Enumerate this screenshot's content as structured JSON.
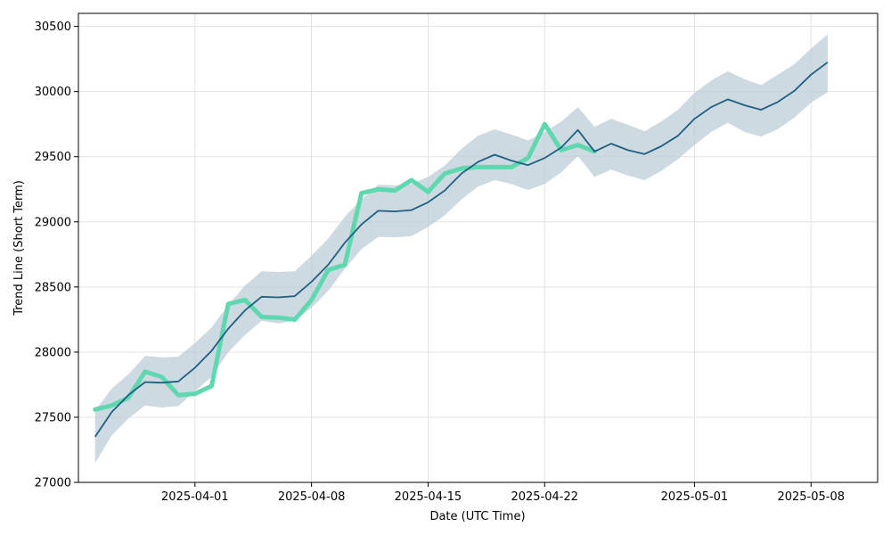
{
  "chart_data": {
    "type": "line",
    "title": "",
    "xlabel": "Date (UTC Time)",
    "ylabel": "Trend Line (Short Term)",
    "xlim": [
      "2025-03-25",
      "2025-05-12"
    ],
    "ylim": [
      27000,
      30600
    ],
    "grid": true,
    "legend": "none",
    "x_ticks": [
      "2025-04-01",
      "2025-04-08",
      "2025-04-15",
      "2025-04-22",
      "2025-05-01",
      "2025-05-08"
    ],
    "y_ticks": [
      27000,
      27500,
      28000,
      28500,
      29000,
      29500,
      30000,
      30500
    ],
    "colors": {
      "actual": "#5fd8b0",
      "trend": "#1f5f80",
      "band": "#b8cad6"
    },
    "series": [
      {
        "key": "actual",
        "x": [
          "2025-03-26",
          "2025-03-27",
          "2025-03-28",
          "2025-03-29",
          "2025-03-30",
          "2025-03-31",
          "2025-04-01",
          "2025-04-02",
          "2025-04-03",
          "2025-04-04",
          "2025-04-05",
          "2025-04-06",
          "2025-04-07",
          "2025-04-08",
          "2025-04-09",
          "2025-04-10",
          "2025-04-11",
          "2025-04-12",
          "2025-04-13",
          "2025-04-14",
          "2025-04-15",
          "2025-04-16",
          "2025-04-17",
          "2025-04-18",
          "2025-04-19",
          "2025-04-20",
          "2025-04-21",
          "2025-04-22",
          "2025-04-23",
          "2025-04-24",
          "2025-04-25"
        ],
        "values": [
          27560,
          27590,
          27650,
          27850,
          27810,
          27670,
          27680,
          27740,
          28370,
          28400,
          28270,
          28265,
          28250,
          28400,
          28630,
          28670,
          29220,
          29250,
          29240,
          29320,
          29230,
          29370,
          29410,
          29420,
          29420,
          29420,
          29490,
          29750,
          29550,
          29590,
          29540
        ]
      },
      {
        "key": "trend",
        "x": [
          "2025-03-26",
          "2025-03-27",
          "2025-03-28",
          "2025-03-29",
          "2025-03-30",
          "2025-03-31",
          "2025-04-01",
          "2025-04-02",
          "2025-04-03",
          "2025-04-04",
          "2025-04-05",
          "2025-04-06",
          "2025-04-07",
          "2025-04-08",
          "2025-04-09",
          "2025-04-10",
          "2025-04-11",
          "2025-04-12",
          "2025-04-13",
          "2025-04-14",
          "2025-04-15",
          "2025-04-16",
          "2025-04-17",
          "2025-04-18",
          "2025-04-19",
          "2025-04-20",
          "2025-04-21",
          "2025-04-22",
          "2025-04-23",
          "2025-04-24",
          "2025-04-25",
          "2025-04-26",
          "2025-04-27",
          "2025-04-28",
          "2025-04-29",
          "2025-04-30",
          "2025-05-01",
          "2025-05-02",
          "2025-05-03",
          "2025-05-04",
          "2025-05-05",
          "2025-05-06",
          "2025-05-07",
          "2025-05-08",
          "2025-05-09"
        ],
        "values": [
          27350,
          27540,
          27670,
          27770,
          27765,
          27775,
          27880,
          28010,
          28180,
          28320,
          28425,
          28420,
          28430,
          28540,
          28670,
          28840,
          28980,
          29085,
          29080,
          29090,
          29150,
          29240,
          29370,
          29460,
          29515,
          29470,
          29435,
          29490,
          29570,
          29705,
          29540,
          29600,
          29550,
          29520,
          29580,
          29660,
          29790,
          29880,
          29940,
          29895,
          29860,
          29920,
          30005,
          30130,
          30225
        ],
        "lower": [
          27150,
          27360,
          27490,
          27590,
          27575,
          27585,
          27700,
          27810,
          28000,
          28130,
          28240,
          28220,
          28240,
          28340,
          28470,
          28640,
          28790,
          28885,
          28880,
          28890,
          28960,
          29050,
          29170,
          29270,
          29320,
          29290,
          29245,
          29290,
          29380,
          29505,
          29345,
          29400,
          29355,
          29320,
          29390,
          29480,
          29590,
          29690,
          29760,
          29690,
          29655,
          29710,
          29800,
          29915,
          29995
        ],
        "upper": [
          27550,
          27720,
          27830,
          27970,
          27960,
          27965,
          28070,
          28190,
          28360,
          28510,
          28620,
          28615,
          28620,
          28740,
          28870,
          29040,
          29170,
          29285,
          29280,
          29290,
          29345,
          29430,
          29560,
          29660,
          29710,
          29670,
          29625,
          29690,
          29770,
          29880,
          29730,
          29790,
          29745,
          29695,
          29770,
          29860,
          29990,
          30085,
          30155,
          30095,
          30050,
          30130,
          30210,
          30330,
          30440
        ]
      }
    ]
  }
}
